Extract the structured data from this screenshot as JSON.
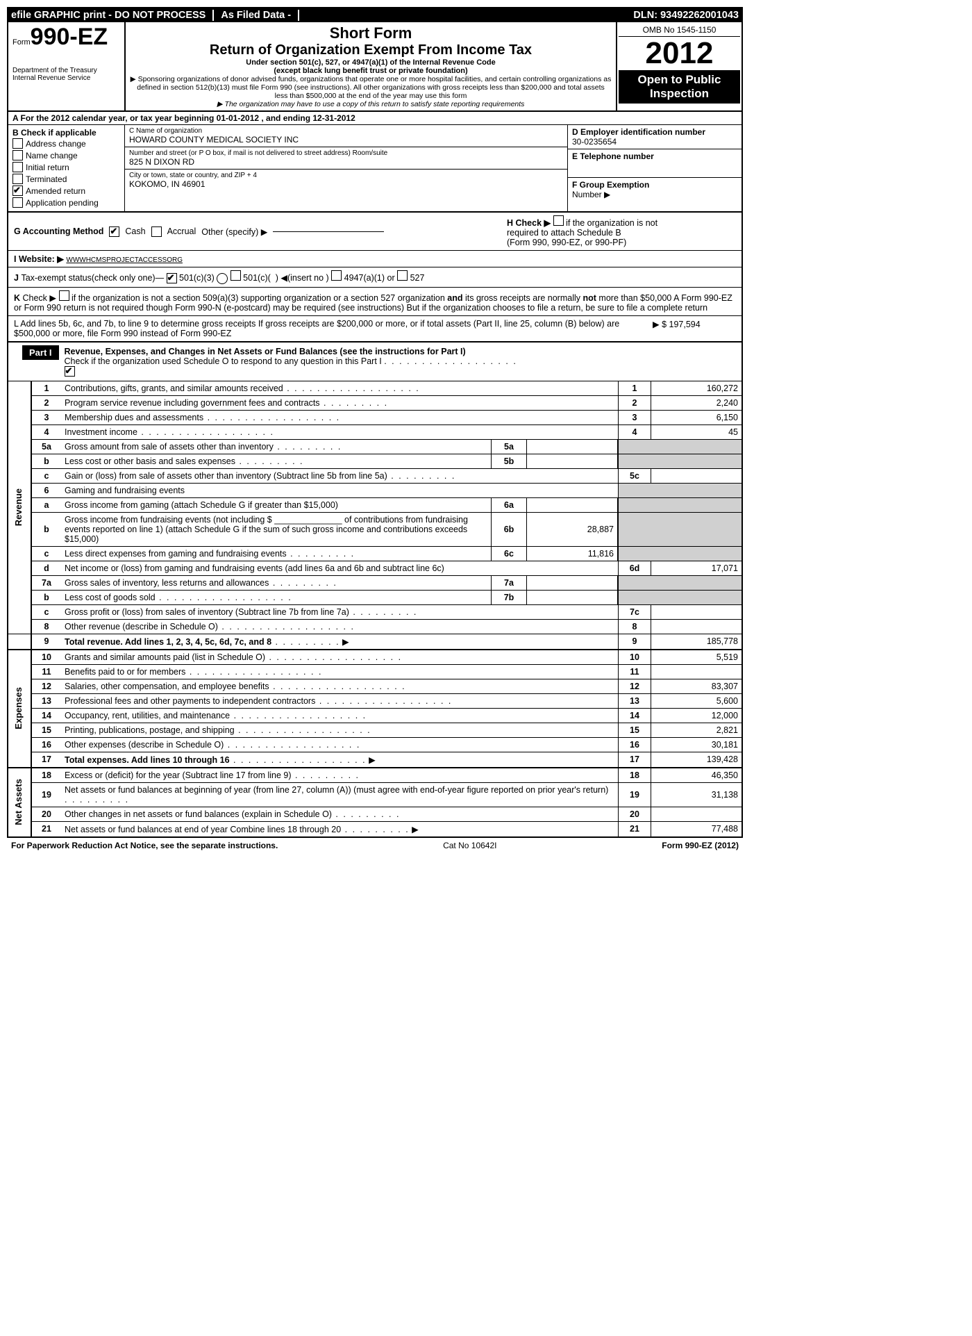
{
  "topbar": {
    "efile": "efile GRAPHIC print - DO NOT PROCESS",
    "asfiled": "As Filed Data -",
    "dln_label": "DLN:",
    "dln": "93492262001043"
  },
  "header": {
    "form_word": "Form",
    "form_no": "990-EZ",
    "dept1": "Department of the Treasury",
    "dept2": "Internal Revenue Service",
    "shortform": "Short Form",
    "title": "Return of Organization Exempt From Income Tax",
    "sub1": "Under section 501(c), 527, or 4947(a)(1) of the Internal Revenue Code",
    "sub2": "(except black lung benefit trust or private foundation)",
    "note1": "▶ Sponsoring organizations of donor advised funds, organizations that operate one or more hospital facilities, and certain controlling organizations as defined in section 512(b)(13) must file Form 990 (see instructions). All other organizations with gross receipts less than $200,000 and total assets less than $500,000 at the end of the year may use this form",
    "note2": "▶ The organization may have to use a copy of this return to satisfy state reporting requirements",
    "omb": "OMB No  1545-1150",
    "year": "2012",
    "open1": "Open to Public",
    "open2": "Inspection"
  },
  "rowA": "A  For the 2012 calendar year, or tax year beginning 01-01-2012            , and ending 12-31-2012",
  "colB": {
    "head": "B  Check if applicable",
    "items": [
      "Address change",
      "Name change",
      "Initial return",
      "Terminated",
      "Amended return",
      "Application pending"
    ],
    "checked_idx": 4
  },
  "colC": {
    "c_label": "C Name of organization",
    "c_val": "HOWARD COUNTY MEDICAL SOCIETY INC",
    "addr_label": "Number and street (or P O  box, if mail is not delivered to street address) Room/suite",
    "addr_val": "825 N DIXON RD",
    "city_label": "City or town, state or country, and ZIP + 4",
    "city_val": "KOKOMO, IN  46901"
  },
  "colDE": {
    "d_label": "D Employer identification number",
    "d_val": "30-0235654",
    "e_label": "E Telephone number",
    "f_label": "F Group Exemption",
    "f_label2": "Number    ▶"
  },
  "rowG": {
    "g": "G Accounting Method",
    "cash": "Cash",
    "accrual": "Accrual",
    "other": "Other (specify) ▶",
    "h1": "H  Check ▶",
    "h2": "if the organization is not",
    "h3": "required to attach Schedule B",
    "h4": "(Form 990, 990-EZ, or 990-PF)"
  },
  "rowI": {
    "label": "I Website: ▶",
    "val": "WWWHCMSPROJECTACCESSORG"
  },
  "rowJ": "J Tax-exempt status(check only one)—     501(c)(3)       501(c)(  )  ◀(insert no )     4947(a)(1) or      527",
  "rowK": "K Check ▶      if the organization is not a section 509(a)(3) supporting organization or a section 527 organization and its gross receipts are normally not more than $50,000  A Form 990-EZ or Form 990 return is not required though Form 990-N (e-postcard) may be required (see instructions)  But if the organization chooses to file a return, be sure to file a complete return",
  "rowL": {
    "text": "L Add lines 5b, 6c, and 7b, to line 9 to determine gross receipts  If gross receipts are $200,000 or more, or if total assets (Part II, line 25, column (B) below) are $500,000 or more, file Form 990 instead of Form 990-EZ",
    "amt_lbl": "▶ $",
    "amt": "197,594"
  },
  "part1": {
    "tag": "Part I",
    "title": "Revenue, Expenses, and Changes in Net Assets or Fund Balances (see the instructions for Part I)",
    "sub": "Check if the organization used Schedule O to respond to any question in this Part I"
  },
  "lines": {
    "l1": {
      "no": "1",
      "desc": "Contributions, gifts, grants, and similar amounts received",
      "rt": "1",
      "val": "160,272"
    },
    "l2": {
      "no": "2",
      "desc": "Program service revenue including government fees and contracts",
      "rt": "2",
      "val": "2,240"
    },
    "l3": {
      "no": "3",
      "desc": "Membership dues and assessments",
      "rt": "3",
      "val": "6,150"
    },
    "l4": {
      "no": "4",
      "desc": "Investment income",
      "rt": "4",
      "val": "45"
    },
    "l5a": {
      "no": "5a",
      "desc": "Gross amount from sale of assets other than inventory",
      "sub": "5a"
    },
    "l5b": {
      "no": "b",
      "desc": "Less  cost or other basis and sales expenses",
      "sub": "5b"
    },
    "l5c": {
      "no": "c",
      "desc": "Gain or (loss) from sale of assets other than inventory (Subtract line 5b from line 5a)",
      "rt": "5c"
    },
    "l6": {
      "no": "6",
      "desc": "Gaming and fundraising events"
    },
    "l6a": {
      "no": "a",
      "desc": "Gross income from gaming (attach Schedule G if greater than $15,000)",
      "sub": "6a"
    },
    "l6b": {
      "no": "b",
      "desc": "Gross income from fundraising events (not including $ ______________ of contributions from fundraising events reported on line 1) (attach Schedule G if the sum of such gross income and contributions exceeds $15,000)",
      "sub": "6b",
      "subval": "28,887"
    },
    "l6c": {
      "no": "c",
      "desc": "Less  direct expenses from gaming and fundraising events",
      "sub": "6c",
      "subval": "11,816"
    },
    "l6d": {
      "no": "d",
      "desc": "Net income or (loss) from gaming and fundraising events (add lines 6a and 6b and subtract line 6c)",
      "rt": "6d",
      "val": "17,071"
    },
    "l7a": {
      "no": "7a",
      "desc": "Gross sales of inventory, less returns and allowances",
      "sub": "7a"
    },
    "l7b": {
      "no": "b",
      "desc": "Less  cost of goods sold",
      "sub": "7b"
    },
    "l7c": {
      "no": "c",
      "desc": "Gross profit or (loss) from sales of inventory (Subtract line 7b from line 7a)",
      "rt": "7c"
    },
    "l8": {
      "no": "8",
      "desc": "Other revenue (describe in Schedule O)",
      "rt": "8"
    },
    "l9": {
      "no": "9",
      "desc": "Total revenue. Add lines 1, 2, 3, 4, 5c, 6d, 7c, and 8",
      "rt": "9",
      "val": "185,778",
      "bold": true
    },
    "l10": {
      "no": "10",
      "desc": "Grants and similar amounts paid (list in Schedule O)",
      "rt": "10",
      "val": "5,519"
    },
    "l11": {
      "no": "11",
      "desc": "Benefits paid to or for members",
      "rt": "11"
    },
    "l12": {
      "no": "12",
      "desc": "Salaries, other compensation, and employee benefits",
      "rt": "12",
      "val": "83,307"
    },
    "l13": {
      "no": "13",
      "desc": "Professional fees and other payments to independent contractors",
      "rt": "13",
      "val": "5,600"
    },
    "l14": {
      "no": "14",
      "desc": "Occupancy, rent, utilities, and maintenance",
      "rt": "14",
      "val": "12,000"
    },
    "l15": {
      "no": "15",
      "desc": "Printing, publications, postage, and shipping",
      "rt": "15",
      "val": "2,821"
    },
    "l16": {
      "no": "16",
      "desc": "Other expenses (describe in Schedule O)",
      "rt": "16",
      "val": "30,181"
    },
    "l17": {
      "no": "17",
      "desc": "Total expenses. Add lines 10 through 16",
      "rt": "17",
      "val": "139,428",
      "bold": true
    },
    "l18": {
      "no": "18",
      "desc": "Excess or (deficit) for the year (Subtract line 17 from line 9)",
      "rt": "18",
      "val": "46,350"
    },
    "l19": {
      "no": "19",
      "desc": "Net assets or fund balances at beginning of year (from line 27, column (A)) (must agree with end-of-year figure reported on prior year's return)",
      "rt": "19",
      "val": "31,138"
    },
    "l20": {
      "no": "20",
      "desc": "Other changes in net assets or fund balances (explain in Schedule O)",
      "rt": "20"
    },
    "l21": {
      "no": "21",
      "desc": "Net assets or fund balances at end of year  Combine lines 18 through 20",
      "rt": "21",
      "val": "77,488"
    }
  },
  "sidebars": {
    "rev": "Revenue",
    "exp": "Expenses",
    "na": "Net Assets"
  },
  "footer": {
    "left": "For Paperwork Reduction Act Notice, see the separate instructions.",
    "mid": "Cat No  10642I",
    "right": "Form 990-EZ (2012)"
  }
}
